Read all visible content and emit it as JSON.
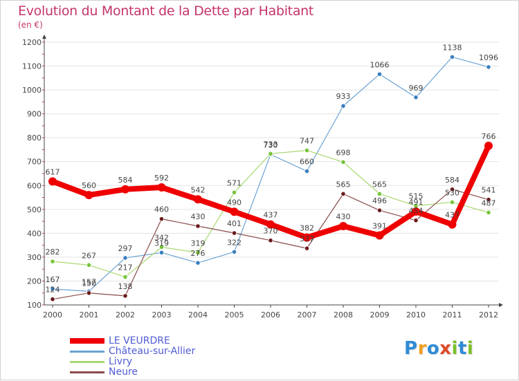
{
  "title": "Evolution du Montant de la Dette par Habitant",
  "subtitle": "(en €)",
  "logo": {
    "text": "Proxiti",
    "letters": [
      {
        "ch": "P",
        "color": "#2e8bd6"
      },
      {
        "ch": "r",
        "color": "#f0a020"
      },
      {
        "ch": "o",
        "color": "#2e8bd6"
      },
      {
        "ch": "x",
        "color": "#e04a2a"
      },
      {
        "ch": "i",
        "color": "#7cbf2a"
      },
      {
        "ch": "t",
        "color": "#2e8bd6"
      },
      {
        "ch": "i",
        "color": "#7cbf2a"
      }
    ]
  },
  "colors": {
    "title": "#c4336b",
    "legend_text": "#4f5bd5",
    "axis": "#444444",
    "grid": "#e3e3e3",
    "data_label": "#444444"
  },
  "chart_data": {
    "type": "line",
    "title": "Evolution du Montant de la Dette par Habitant",
    "subtitle": "(en €)",
    "xlabel": "",
    "ylabel": "",
    "categories": [
      "2000",
      "2001",
      "2002",
      "2003",
      "2004",
      "2005",
      "2006",
      "2007",
      "2008",
      "2009",
      "2010",
      "2011",
      "2012"
    ],
    "ylim": [
      100,
      1200
    ],
    "yticks": [
      100,
      200,
      300,
      400,
      500,
      600,
      700,
      800,
      900,
      1000,
      1100,
      1200
    ],
    "grid": true,
    "legend_position": "bottom-left",
    "series": [
      {
        "name": "LE VEURDRE",
        "color": "#ee0000",
        "emphasis": "thick",
        "values": [
          617,
          560,
          584,
          592,
          542,
          490,
          437,
          382,
          430,
          391,
          491,
          437,
          766
        ],
        "labels": [
          "617",
          "560",
          "584",
          "592",
          "542",
          "490",
          "437",
          "382",
          "430",
          "391",
          "491",
          "437",
          "766"
        ]
      },
      {
        "name": "Château-sur-Allier",
        "color": "#6aa2d4",
        "point_color": "#3a7fc0",
        "values": [
          167,
          157,
          297,
          319,
          276,
          322,
          730,
          660,
          933,
          1066,
          969,
          1138,
          1096
        ],
        "labels": [
          "167",
          "157",
          "297",
          "319",
          "276",
          "322",
          "730",
          "660",
          "933",
          "1066",
          "969",
          "1138",
          "1096"
        ]
      },
      {
        "name": "Livry",
        "color": "#a6d86e",
        "point_color": "#76c43a",
        "values": [
          282,
          267,
          217,
          342,
          319,
          571,
          733,
          747,
          698,
          565,
          515,
          530,
          487
        ],
        "labels": [
          "282",
          "267",
          "217",
          "342",
          "319",
          "571",
          "733",
          "747",
          "698",
          "565",
          "515",
          "530",
          "487"
        ]
      },
      {
        "name": "Neure",
        "color": "#8a4a4a",
        "point_color": "#6a1a1a",
        "values": [
          124,
          150,
          138,
          460,
          430,
          401,
          370,
          337,
          565,
          496,
          454,
          584,
          541
        ],
        "labels": [
          "124",
          "150",
          "138",
          "460",
          "430",
          "401",
          "370",
          "337",
          "565",
          "496",
          "454",
          "584",
          "541"
        ]
      }
    ]
  }
}
